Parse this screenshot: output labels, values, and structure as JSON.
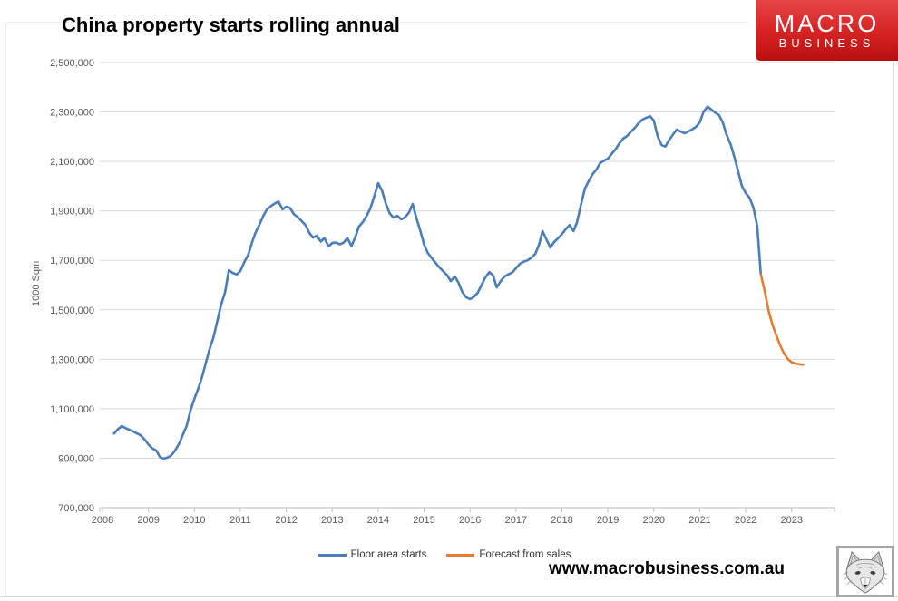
{
  "header": {
    "title": "China property starts rolling annual"
  },
  "logo": {
    "line1": "MACRO",
    "line2": "BUSINESS",
    "bg_color": "#c71414",
    "text_color": "#ffffff"
  },
  "footer": {
    "url": "www.macrobusiness.com.au",
    "icon": "wolf-sketch-icon"
  },
  "legend": {
    "items": [
      {
        "label": "Floor area starts",
        "color": "#4b7db9"
      },
      {
        "label": "Forecast from sales",
        "color": "#e67d32"
      }
    ]
  },
  "colors": {
    "gridline": "#d9d9d9",
    "axis": "#bfbfbf",
    "axis_text": "#595959",
    "series_blue": "#4b7db9",
    "series_orange": "#e67d32"
  },
  "chart_data": {
    "type": "line",
    "title": "China property starts rolling annual",
    "xlabel": "",
    "ylabel": "1000 Sqm",
    "ylim": [
      700000,
      2500000
    ],
    "xlim": [
      2008,
      2024
    ],
    "grid": "horizontal",
    "legend_position": "bottom",
    "y_ticks": [
      700000,
      900000,
      1100000,
      1300000,
      1500000,
      1700000,
      1900000,
      2100000,
      2300000,
      2500000
    ],
    "y_tick_labels": [
      "700,000",
      "900,000",
      "1,100,000",
      "1,300,000",
      "1,500,000",
      "1,700,000",
      "1,900,000",
      "2,100,000",
      "2,300,000",
      "2,500,000"
    ],
    "x_ticks": [
      2008,
      2009,
      2010,
      2011,
      2012,
      2013,
      2014,
      2015,
      2016,
      2017,
      2018,
      2019,
      2020,
      2021,
      2022,
      2023
    ],
    "x_tick_labels": [
      "2008",
      "2009",
      "2010",
      "2011",
      "2012",
      "2013",
      "2014",
      "2015",
      "2016",
      "2017",
      "2018",
      "2019",
      "2020",
      "2021",
      "2022",
      "2023"
    ],
    "series": [
      {
        "name": "Floor area starts",
        "color": "#4b7db9",
        "points": [
          [
            2008.25,
            1000000
          ],
          [
            2008.33,
            1016000
          ],
          [
            2008.42,
            1030000
          ],
          [
            2008.5,
            1022000
          ],
          [
            2008.58,
            1015000
          ],
          [
            2008.67,
            1008000
          ],
          [
            2008.75,
            1000000
          ],
          [
            2008.83,
            993000
          ],
          [
            2008.92,
            975000
          ],
          [
            2009.0,
            955000
          ],
          [
            2009.08,
            940000
          ],
          [
            2009.17,
            931000
          ],
          [
            2009.25,
            905000
          ],
          [
            2009.33,
            898000
          ],
          [
            2009.42,
            903000
          ],
          [
            2009.5,
            912000
          ],
          [
            2009.58,
            931000
          ],
          [
            2009.67,
            960000
          ],
          [
            2009.75,
            995000
          ],
          [
            2009.83,
            1030000
          ],
          [
            2009.92,
            1096000
          ],
          [
            2010.0,
            1140000
          ],
          [
            2010.08,
            1180000
          ],
          [
            2010.17,
            1230000
          ],
          [
            2010.25,
            1287000
          ],
          [
            2010.33,
            1340000
          ],
          [
            2010.42,
            1392000
          ],
          [
            2010.5,
            1455000
          ],
          [
            2010.58,
            1520000
          ],
          [
            2010.67,
            1572000
          ],
          [
            2010.75,
            1660000
          ],
          [
            2010.83,
            1650000
          ],
          [
            2010.92,
            1643000
          ],
          [
            2011.0,
            1656000
          ],
          [
            2011.08,
            1690000
          ],
          [
            2011.17,
            1722000
          ],
          [
            2011.25,
            1770000
          ],
          [
            2011.33,
            1812000
          ],
          [
            2011.42,
            1846000
          ],
          [
            2011.5,
            1880000
          ],
          [
            2011.58,
            1906000
          ],
          [
            2011.67,
            1920000
          ],
          [
            2011.75,
            1930000
          ],
          [
            2011.83,
            1938000
          ],
          [
            2011.92,
            1906000
          ],
          [
            2012.0,
            1917000
          ],
          [
            2012.08,
            1912000
          ],
          [
            2012.17,
            1886000
          ],
          [
            2012.25,
            1875000
          ],
          [
            2012.33,
            1860000
          ],
          [
            2012.42,
            1842000
          ],
          [
            2012.5,
            1812000
          ],
          [
            2012.58,
            1792000
          ],
          [
            2012.67,
            1800000
          ],
          [
            2012.75,
            1776000
          ],
          [
            2012.83,
            1790000
          ],
          [
            2012.92,
            1757000
          ],
          [
            2013.0,
            1770000
          ],
          [
            2013.08,
            1772000
          ],
          [
            2013.17,
            1765000
          ],
          [
            2013.25,
            1772000
          ],
          [
            2013.33,
            1790000
          ],
          [
            2013.42,
            1758000
          ],
          [
            2013.5,
            1793000
          ],
          [
            2013.58,
            1836000
          ],
          [
            2013.67,
            1856000
          ],
          [
            2013.75,
            1880000
          ],
          [
            2013.83,
            1910000
          ],
          [
            2013.92,
            1962000
          ],
          [
            2014.0,
            2012000
          ],
          [
            2014.08,
            1983000
          ],
          [
            2014.17,
            1928000
          ],
          [
            2014.25,
            1890000
          ],
          [
            2014.33,
            1873000
          ],
          [
            2014.42,
            1880000
          ],
          [
            2014.5,
            1866000
          ],
          [
            2014.58,
            1873000
          ],
          [
            2014.67,
            1893000
          ],
          [
            2014.75,
            1928000
          ],
          [
            2014.83,
            1873000
          ],
          [
            2014.92,
            1818000
          ],
          [
            2015.0,
            1763000
          ],
          [
            2015.08,
            1730000
          ],
          [
            2015.17,
            1708000
          ],
          [
            2015.25,
            1690000
          ],
          [
            2015.33,
            1672000
          ],
          [
            2015.42,
            1655000
          ],
          [
            2015.5,
            1640000
          ],
          [
            2015.58,
            1616000
          ],
          [
            2015.67,
            1635000
          ],
          [
            2015.75,
            1609000
          ],
          [
            2015.83,
            1572000
          ],
          [
            2015.92,
            1550000
          ],
          [
            2016.0,
            1543000
          ],
          [
            2016.08,
            1552000
          ],
          [
            2016.17,
            1570000
          ],
          [
            2016.25,
            1600000
          ],
          [
            2016.33,
            1630000
          ],
          [
            2016.42,
            1652000
          ],
          [
            2016.5,
            1640000
          ],
          [
            2016.58,
            1591000
          ],
          [
            2016.67,
            1616000
          ],
          [
            2016.75,
            1635000
          ],
          [
            2016.83,
            1643000
          ],
          [
            2016.92,
            1651000
          ],
          [
            2017.0,
            1668000
          ],
          [
            2017.08,
            1685000
          ],
          [
            2017.17,
            1695000
          ],
          [
            2017.25,
            1700000
          ],
          [
            2017.33,
            1710000
          ],
          [
            2017.42,
            1726000
          ],
          [
            2017.5,
            1763000
          ],
          [
            2017.58,
            1818000
          ],
          [
            2017.67,
            1781000
          ],
          [
            2017.75,
            1752000
          ],
          [
            2017.83,
            1774000
          ],
          [
            2017.92,
            1790000
          ],
          [
            2018.0,
            1806000
          ],
          [
            2018.08,
            1826000
          ],
          [
            2018.17,
            1843000
          ],
          [
            2018.25,
            1818000
          ],
          [
            2018.33,
            1855000
          ],
          [
            2018.42,
            1930000
          ],
          [
            2018.5,
            1990000
          ],
          [
            2018.58,
            2020000
          ],
          [
            2018.67,
            2049000
          ],
          [
            2018.75,
            2067000
          ],
          [
            2018.83,
            2093000
          ],
          [
            2018.92,
            2104000
          ],
          [
            2019.0,
            2111000
          ],
          [
            2019.08,
            2130000
          ],
          [
            2019.17,
            2150000
          ],
          [
            2019.25,
            2173000
          ],
          [
            2019.33,
            2192000
          ],
          [
            2019.42,
            2203000
          ],
          [
            2019.5,
            2220000
          ],
          [
            2019.58,
            2235000
          ],
          [
            2019.67,
            2255000
          ],
          [
            2019.75,
            2269000
          ],
          [
            2019.83,
            2276000
          ],
          [
            2019.92,
            2283000
          ],
          [
            2020.0,
            2265000
          ],
          [
            2020.08,
            2203000
          ],
          [
            2020.17,
            2166000
          ],
          [
            2020.25,
            2160000
          ],
          [
            2020.33,
            2185000
          ],
          [
            2020.42,
            2210000
          ],
          [
            2020.5,
            2229000
          ],
          [
            2020.58,
            2221000
          ],
          [
            2020.67,
            2214000
          ],
          [
            2020.75,
            2221000
          ],
          [
            2020.83,
            2229000
          ],
          [
            2020.92,
            2240000
          ],
          [
            2021.0,
            2258000
          ],
          [
            2021.08,
            2300000
          ],
          [
            2021.17,
            2322000
          ],
          [
            2021.25,
            2310000
          ],
          [
            2021.33,
            2298000
          ],
          [
            2021.42,
            2287000
          ],
          [
            2021.5,
            2258000
          ],
          [
            2021.58,
            2210000
          ],
          [
            2021.67,
            2170000
          ],
          [
            2021.75,
            2121000
          ],
          [
            2021.83,
            2064000
          ],
          [
            2021.92,
            2000000
          ],
          [
            2022.0,
            1972000
          ],
          [
            2022.08,
            1954000
          ],
          [
            2022.17,
            1912000
          ],
          [
            2022.25,
            1840000
          ],
          [
            2022.33,
            1642000
          ]
        ]
      },
      {
        "name": "Forecast from sales",
        "color": "#e67d32",
        "points": [
          [
            2022.33,
            1642000
          ],
          [
            2022.42,
            1570000
          ],
          [
            2022.5,
            1495000
          ],
          [
            2022.58,
            1440000
          ],
          [
            2022.67,
            1395000
          ],
          [
            2022.75,
            1356000
          ],
          [
            2022.83,
            1325000
          ],
          [
            2022.92,
            1300000
          ],
          [
            2023.0,
            1288000
          ],
          [
            2023.08,
            1283000
          ],
          [
            2023.17,
            1280000
          ],
          [
            2023.25,
            1278000
          ]
        ]
      }
    ]
  }
}
